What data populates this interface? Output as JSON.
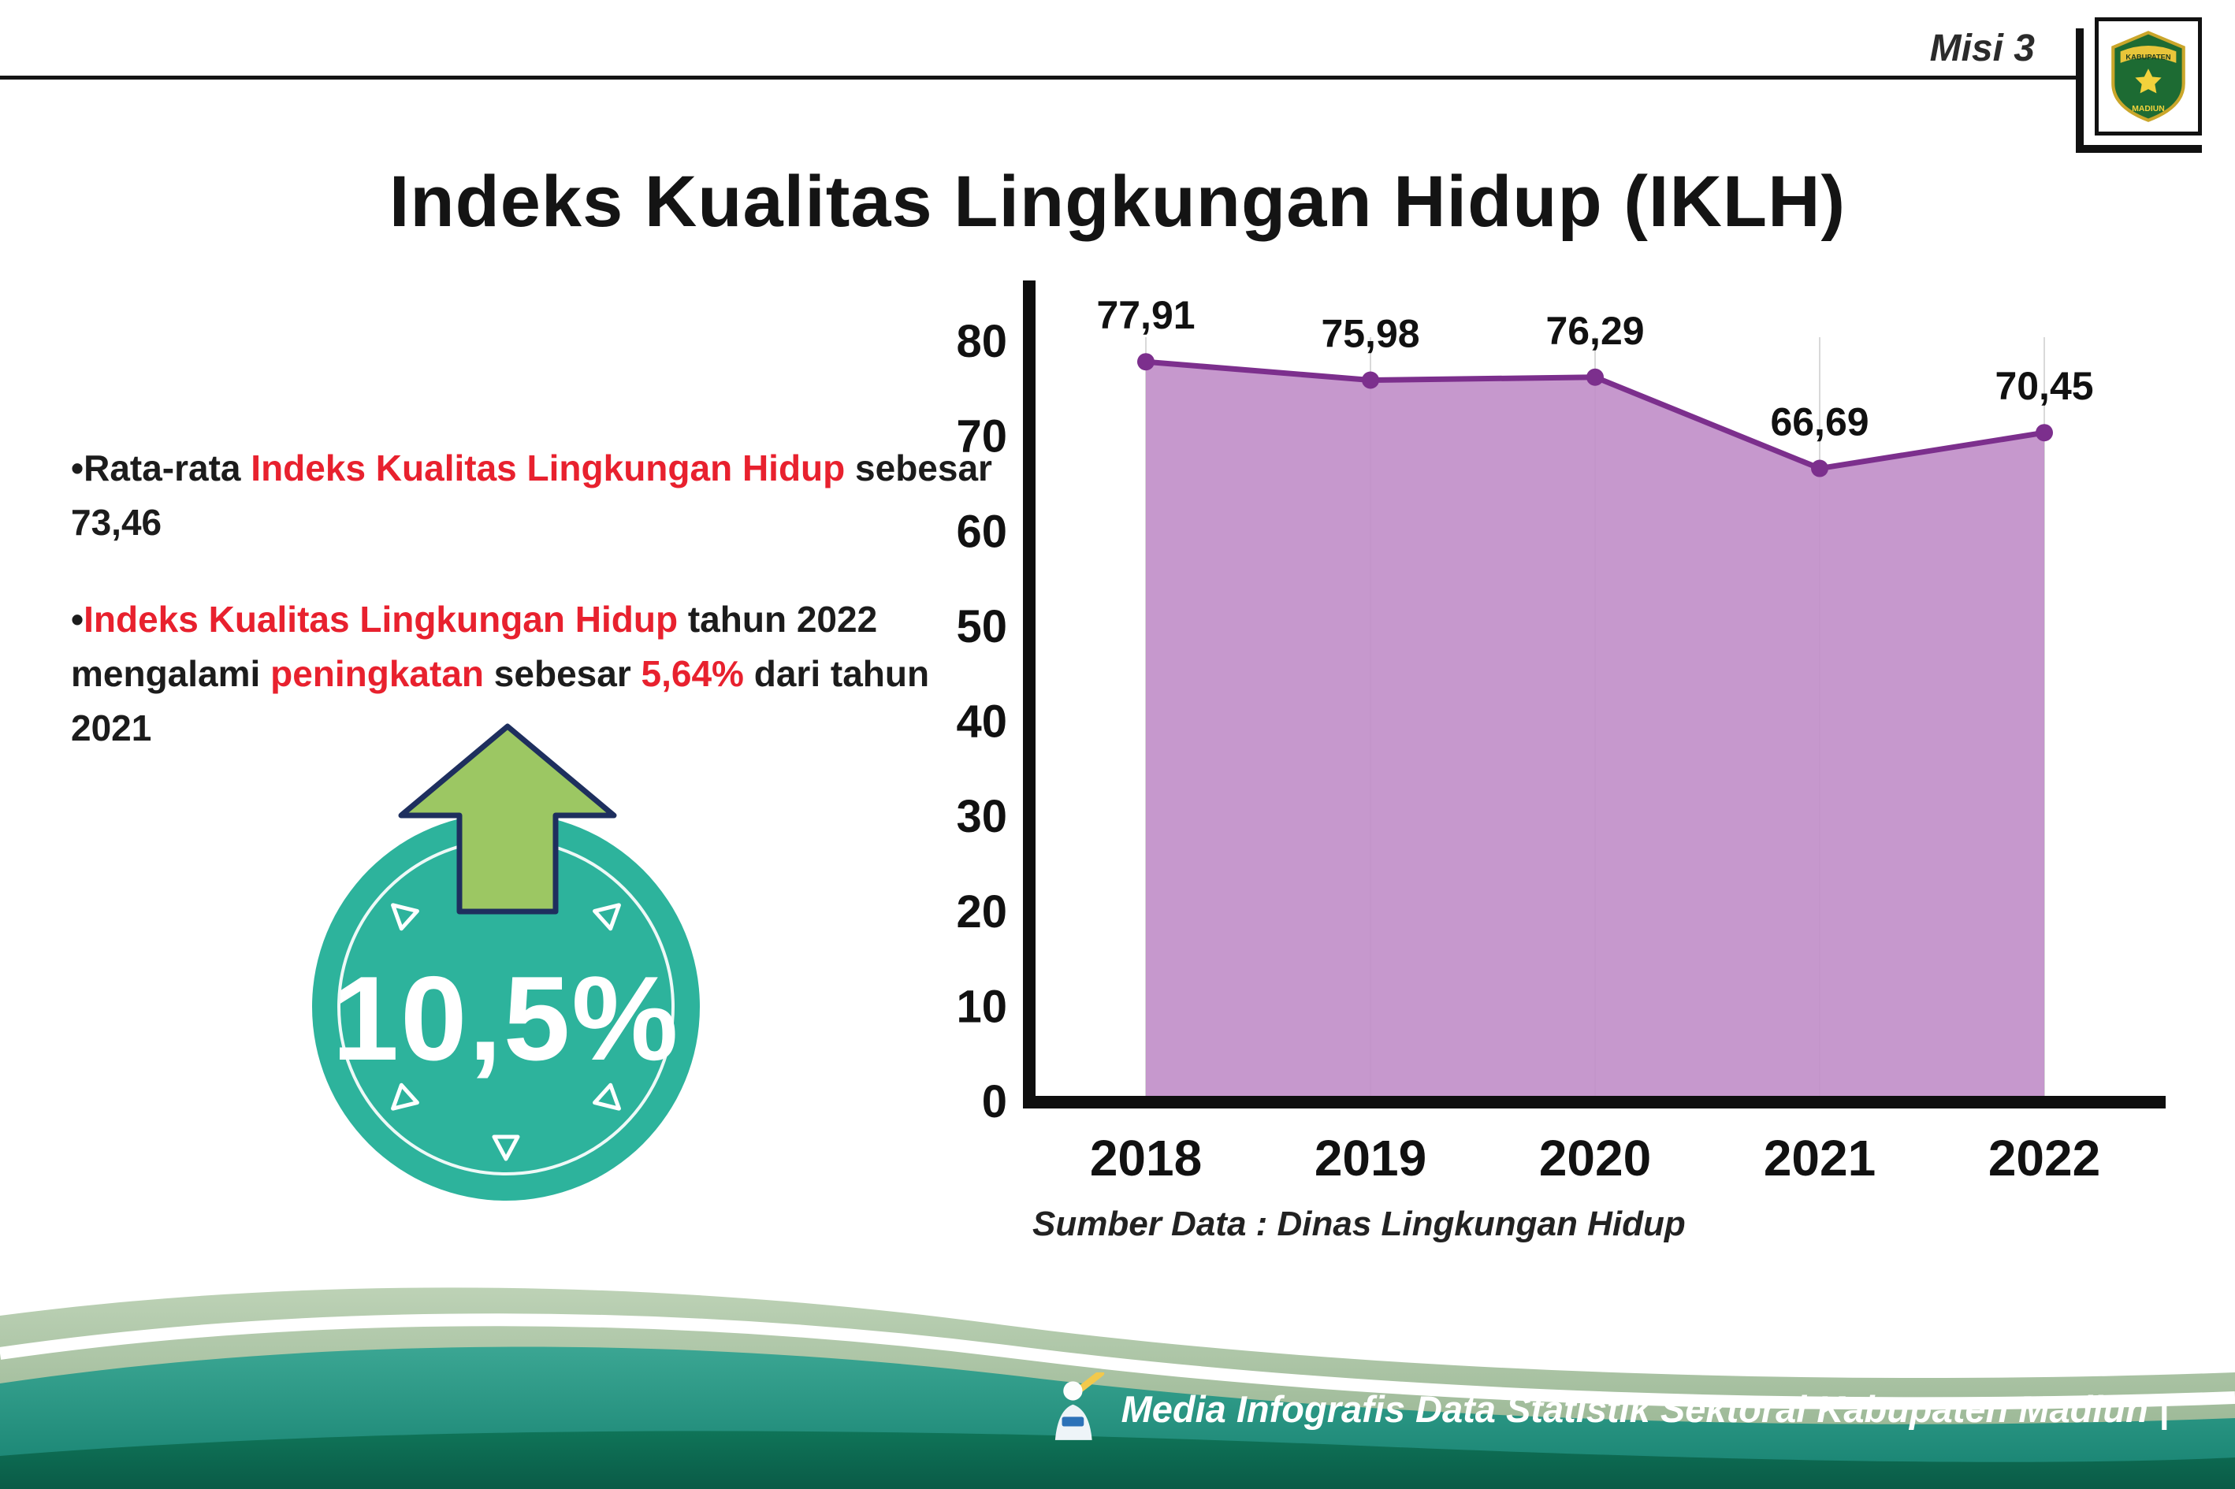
{
  "header": {
    "misi": "Misi 3",
    "logo_top": "KABUPATEN",
    "logo_bottom": "MADIUN"
  },
  "title": "Indeks Kualitas Lingkungan Hidup (IKLH)",
  "bullets": {
    "b1_prefix": "•Rata-rata ",
    "b1_red": "Indeks Kualitas Lingkungan Hidup",
    "b1_suffix": " sebesar 73,46",
    "b2_bullet": "•",
    "b2_red1": "Indeks Kualitas Lingkungan Hidup",
    "b2_mid1": " tahun 2022 mengalami ",
    "b2_red2": "peningkatan",
    "b2_mid2": " sebesar ",
    "b2_red3": "5,64%",
    "b2_suffix": " dari tahun 2021"
  },
  "badge": {
    "value": "10,5%"
  },
  "chart_data": {
    "type": "area",
    "title": "Indeks Kualitas Lingkungan Hidup (IKLH)",
    "categories": [
      "2018",
      "2019",
      "2020",
      "2021",
      "2022"
    ],
    "values": [
      77.91,
      75.98,
      76.29,
      66.69,
      70.45
    ],
    "value_labels": [
      "77,91",
      "75,98",
      "76,29",
      "66,69",
      "70,45"
    ],
    "xlabel": "",
    "ylabel": "",
    "ylim": [
      0,
      80
    ],
    "yticks": [
      0,
      10,
      20,
      30,
      40,
      50,
      60,
      70,
      80
    ],
    "grid": "vertical-light",
    "legend": "none",
    "source_note": "Sumber Data : Dinas Lingkungan Hidup",
    "colors": {
      "area": "#c18fc9",
      "line": "#7c2f8d",
      "dot": "#7c2f8d"
    }
  },
  "footer": {
    "credit": "Media Infografis Data Statistik Sektoral Kabupaten Madiun |"
  },
  "colors": {
    "red": "#e8212e",
    "badge_teal": "#2db39c",
    "arrow_green": "#9cc763",
    "wave_sage": "#a9c4a3",
    "wave_teal": "#2f9c8a",
    "wave_deep": "#0f6b54",
    "ink": "#161616"
  }
}
